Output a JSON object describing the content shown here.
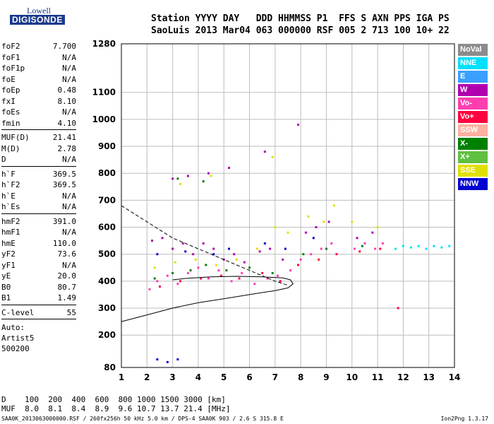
{
  "logo": {
    "top": "Lowell",
    "main": "DIGISONDE"
  },
  "header": {
    "line1": "Station YYYY DAY   DDD HHMMSS P1  FFS S AXN PPS IGA PS",
    "line2": "SaoLuis 2013 Mar04 063 000000 RSF 005 2 713 100 10+ 22"
  },
  "params": [
    {
      "label": "foF2",
      "value": "7.700"
    },
    {
      "label": "foF1",
      "value": "N/A"
    },
    {
      "label": "foF1p",
      "value": "N/A"
    },
    {
      "label": "foE",
      "value": "N/A"
    },
    {
      "label": "foEp",
      "value": "0.48"
    },
    {
      "label": "fxI",
      "value": "8.10"
    },
    {
      "label": "foEs",
      "value": "N/A"
    },
    {
      "label": "fmin",
      "value": "4.10"
    },
    {
      "sep": true
    },
    {
      "label": "MUF(D)",
      "value": "21.41"
    },
    {
      "label": "M(D)",
      "value": "2.78"
    },
    {
      "label": "D",
      "value": "N/A"
    },
    {
      "sep": true
    },
    {
      "label": "h`F",
      "value": "369.5"
    },
    {
      "label": "h`F2",
      "value": "369.5"
    },
    {
      "label": "h`E",
      "value": "N/A"
    },
    {
      "label": "h`Es",
      "value": "N/A"
    },
    {
      "sep": true
    },
    {
      "label": "hmF2",
      "value": "391.0"
    },
    {
      "label": "hmF1",
      "value": "N/A"
    },
    {
      "label": "hmE",
      "value": "110.0"
    },
    {
      "label": "yF2",
      "value": "73.6"
    },
    {
      "label": "yF1",
      "value": "N/A"
    },
    {
      "label": "yE",
      "value": "20.0"
    },
    {
      "label": "B0",
      "value": "80.7"
    },
    {
      "label": "B1",
      "value": "1.49"
    },
    {
      "sep": true
    },
    {
      "label": "C-level",
      "value": "55"
    },
    {
      "sep": true
    }
  ],
  "auto": [
    "Auto:",
    "Artist5",
    "500200"
  ],
  "legend": [
    {
      "label": "NoVal",
      "color": "#8c8c8c"
    },
    {
      "label": "NNE",
      "color": "#00e0ff"
    },
    {
      "label": "E",
      "color": "#3aa0ff"
    },
    {
      "label": "W",
      "color": "#b000b0"
    },
    {
      "label": "Vo-",
      "color": "#ff3fb0"
    },
    {
      "label": "Vo+",
      "color": "#ff0040"
    },
    {
      "label": "SSW",
      "color": "#ffb0a0"
    },
    {
      "label": "X-",
      "color": "#008000"
    },
    {
      "label": "X+",
      "color": "#60c040"
    },
    {
      "label": "SSE",
      "color": "#e0e000"
    },
    {
      "label": "NNW",
      "color": "#0000d0"
    }
  ],
  "muf_table": {
    "d_line": "D    100  200  400  600  800 1000 1500 3000 [km]",
    "muf_line": "MUF  8.0  8.1  8.4  8.9  9.6 10.7 13.7 21.4 [MHz]"
  },
  "footer": {
    "left": "SAA0K_2013063000000.RSF / 260fx256h 50 kHz 5.0 km / DPS-4 SAA0K 903 / 2.6 S 315.8 E",
    "right": "Ion2Png 1.3.17"
  },
  "chart_data": {
    "type": "scatter",
    "x_ticks": [
      "1",
      "2",
      "3",
      "4",
      "5",
      "6",
      "7",
      "8",
      "9",
      "10",
      "11",
      "12",
      "13",
      "14"
    ],
    "y_ticks": [
      "80",
      "200",
      "300",
      "400",
      "500",
      "600",
      "700",
      "800",
      "900",
      "1000",
      "1100",
      "1280"
    ],
    "xlim": [
      1,
      14
    ],
    "ylim": [
      80,
      1280
    ],
    "grid": true,
    "series": [
      {
        "color": "#ff3fb0",
        "points": [
          [
            2.1,
            370
          ],
          [
            2.4,
            400
          ],
          [
            2.8,
            420
          ],
          [
            3.2,
            390
          ],
          [
            3.6,
            430
          ],
          [
            4.0,
            450
          ],
          [
            4.4,
            410
          ],
          [
            4.8,
            440
          ],
          [
            5.3,
            400
          ],
          [
            5.7,
            430
          ],
          [
            6.2,
            390
          ],
          [
            6.7,
            410
          ],
          [
            7.1,
            420
          ],
          [
            7.6,
            440
          ],
          [
            8.0,
            480
          ],
          [
            8.4,
            500
          ],
          [
            8.8,
            520
          ],
          [
            9.2,
            540
          ],
          [
            10.1,
            520
          ],
          [
            10.5,
            540
          ],
          [
            10.9,
            520
          ],
          [
            11.2,
            540
          ]
        ]
      },
      {
        "color": "#b000b0",
        "points": [
          [
            2.2,
            550
          ],
          [
            2.6,
            560
          ],
          [
            3.0,
            520
          ],
          [
            3.4,
            540
          ],
          [
            3.8,
            500
          ],
          [
            4.2,
            540
          ],
          [
            4.6,
            520
          ],
          [
            5.0,
            480
          ],
          [
            5.4,
            500
          ],
          [
            5.8,
            470
          ],
          [
            6.4,
            510
          ],
          [
            6.8,
            520
          ],
          [
            7.3,
            480
          ],
          [
            8.2,
            580
          ],
          [
            8.6,
            600
          ],
          [
            9.1,
            620
          ],
          [
            10.2,
            560
          ],
          [
            10.8,
            580
          ],
          [
            3.0,
            780
          ],
          [
            3.6,
            790
          ],
          [
            4.4,
            800
          ],
          [
            5.2,
            820
          ],
          [
            6.6,
            880
          ],
          [
            7.9,
            980
          ]
        ]
      },
      {
        "color": "#e0e000",
        "points": [
          [
            2.3,
            450
          ],
          [
            3.1,
            470
          ],
          [
            3.9,
            480
          ],
          [
            4.7,
            460
          ],
          [
            5.5,
            480
          ],
          [
            6.3,
            520
          ],
          [
            7.0,
            600
          ],
          [
            7.5,
            580
          ],
          [
            8.3,
            640
          ],
          [
            8.9,
            620
          ],
          [
            9.3,
            680
          ],
          [
            10.0,
            620
          ],
          [
            11.0,
            600
          ],
          [
            3.3,
            760
          ],
          [
            4.5,
            790
          ],
          [
            6.9,
            860
          ]
        ]
      },
      {
        "color": "#ff0040",
        "points": [
          [
            2.5,
            380
          ],
          [
            3.3,
            400
          ],
          [
            4.1,
            410
          ],
          [
            4.9,
            420
          ],
          [
            5.6,
            410
          ],
          [
            6.5,
            430
          ],
          [
            7.2,
            400
          ],
          [
            7.9,
            460
          ],
          [
            8.7,
            480
          ],
          [
            9.4,
            500
          ],
          [
            10.3,
            510
          ],
          [
            11.1,
            520
          ],
          [
            11.8,
            300
          ]
        ]
      },
      {
        "color": "#00e0ff",
        "points": [
          [
            11.7,
            520
          ],
          [
            12.0,
            530
          ],
          [
            12.3,
            525
          ],
          [
            12.6,
            530
          ],
          [
            12.9,
            520
          ],
          [
            13.2,
            530
          ],
          [
            13.5,
            525
          ],
          [
            13.8,
            530
          ]
        ]
      },
      {
        "color": "#008000",
        "points": [
          [
            2.3,
            410
          ],
          [
            3.0,
            430
          ],
          [
            3.7,
            440
          ],
          [
            4.3,
            460
          ],
          [
            5.1,
            440
          ],
          [
            6.0,
            450
          ],
          [
            6.9,
            430
          ],
          [
            8.1,
            500
          ],
          [
            9.0,
            520
          ],
          [
            10.4,
            530
          ],
          [
            3.2,
            780
          ],
          [
            4.2,
            770
          ]
        ]
      },
      {
        "color": "#0000d0",
        "points": [
          [
            2.4,
            500
          ],
          [
            3.5,
            510
          ],
          [
            4.6,
            500
          ],
          [
            5.2,
            520
          ],
          [
            6.6,
            540
          ],
          [
            7.4,
            520
          ],
          [
            8.5,
            560
          ],
          [
            2.4,
            110
          ],
          [
            2.8,
            100
          ],
          [
            3.2,
            110
          ]
        ]
      }
    ],
    "curves": [
      {
        "style": "solid",
        "points": [
          [
            1.0,
            250
          ],
          [
            2.0,
            275
          ],
          [
            3.0,
            300
          ],
          [
            4.0,
            320
          ],
          [
            5.0,
            335
          ],
          [
            6.0,
            350
          ],
          [
            7.0,
            365
          ],
          [
            7.5,
            375
          ],
          [
            7.7,
            390
          ],
          [
            7.6,
            405
          ],
          [
            7.3,
            412
          ],
          [
            6.5,
            416
          ],
          [
            5.5,
            418
          ],
          [
            4.5,
            416
          ],
          [
            3.5,
            410
          ],
          [
            3.0,
            405
          ]
        ]
      },
      {
        "style": "dashed",
        "points": [
          [
            1.0,
            680
          ],
          [
            1.5,
            650
          ],
          [
            2.0,
            620
          ],
          [
            2.5,
            590
          ],
          [
            3.0,
            560
          ],
          [
            3.5,
            540
          ],
          [
            4.0,
            520
          ],
          [
            4.5,
            500
          ],
          [
            5.0,
            480
          ],
          [
            5.5,
            460
          ],
          [
            6.0,
            440
          ],
          [
            6.5,
            420
          ],
          [
            7.0,
            400
          ],
          [
            7.5,
            385
          ]
        ]
      }
    ]
  }
}
